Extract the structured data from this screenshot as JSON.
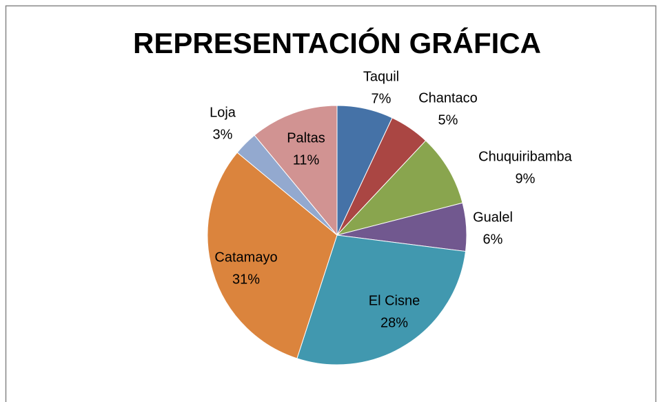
{
  "chart_data": {
    "type": "pie",
    "title": "REPRESENTACIÓN GRÁFICA",
    "categories": [
      "Taquil",
      "Chantaco",
      "Chuquiribamba",
      "Gualel",
      "El Cisne",
      "Catamayo",
      "Loja",
      "Paltas"
    ],
    "values": [
      7,
      5,
      9,
      6,
      28,
      31,
      3,
      11
    ],
    "value_labels": [
      "7%",
      "5%",
      "9%",
      "6%",
      "28%",
      "31%",
      "3%",
      "11%"
    ],
    "colors": [
      "#4572a7",
      "#aa4643",
      "#89a54e",
      "#71588f",
      "#4198af",
      "#db843d",
      "#93a9cf",
      "#d19392"
    ]
  }
}
